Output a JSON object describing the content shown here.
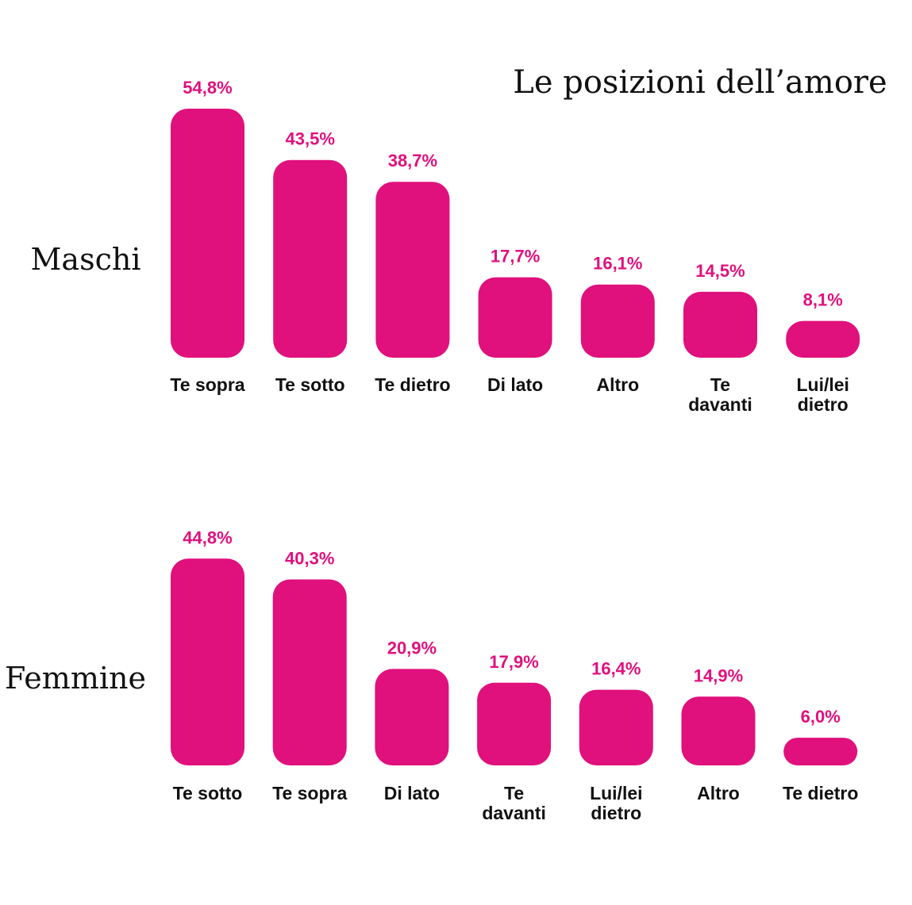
{
  "chart_data": {
    "type": "bar",
    "title": "Le posizioni dell’amore",
    "bar_color": "#E0107D",
    "label_color": "#E0107D",
    "ylim": [
      0,
      60
    ],
    "panels": [
      {
        "name": "Maschi",
        "categories": [
          "Te sopra",
          "Te sotto",
          "Te dietro",
          "Di lato",
          "Altro",
          "Te davanti",
          "Lui/lei dietro"
        ],
        "category_lines": [
          [
            "Te sopra"
          ],
          [
            "Te sotto"
          ],
          [
            "Te dietro"
          ],
          [
            "Di lato"
          ],
          [
            "Altro"
          ],
          [
            "Te",
            "davanti"
          ],
          [
            "Lui/lei",
            "dietro"
          ]
        ],
        "values": [
          54.8,
          43.5,
          38.7,
          17.7,
          16.1,
          14.5,
          8.1
        ],
        "value_labels": [
          "54,8%",
          "43,5%",
          "38,7%",
          "17,7%",
          "16,1%",
          "14,5%",
          "8,1%"
        ]
      },
      {
        "name": "Femmine",
        "categories": [
          "Te sotto",
          "Te sopra",
          "Di lato",
          "Te davanti",
          "Lui/lei dietro",
          "Altro",
          "Te dietro"
        ],
        "category_lines": [
          [
            "Te sotto"
          ],
          [
            "Te sopra"
          ],
          [
            "Di lato"
          ],
          [
            "Te",
            "davanti"
          ],
          [
            "Lui/lei",
            "dietro"
          ],
          [
            "Altro"
          ],
          [
            "Te dietro"
          ]
        ],
        "values": [
          44.8,
          40.3,
          20.9,
          17.9,
          16.4,
          14.9,
          6.0
        ],
        "value_labels": [
          "44,8%",
          "40,3%",
          "20,9%",
          "17,9%",
          "16,4%",
          "14,9%",
          "6,0%"
        ]
      }
    ]
  }
}
